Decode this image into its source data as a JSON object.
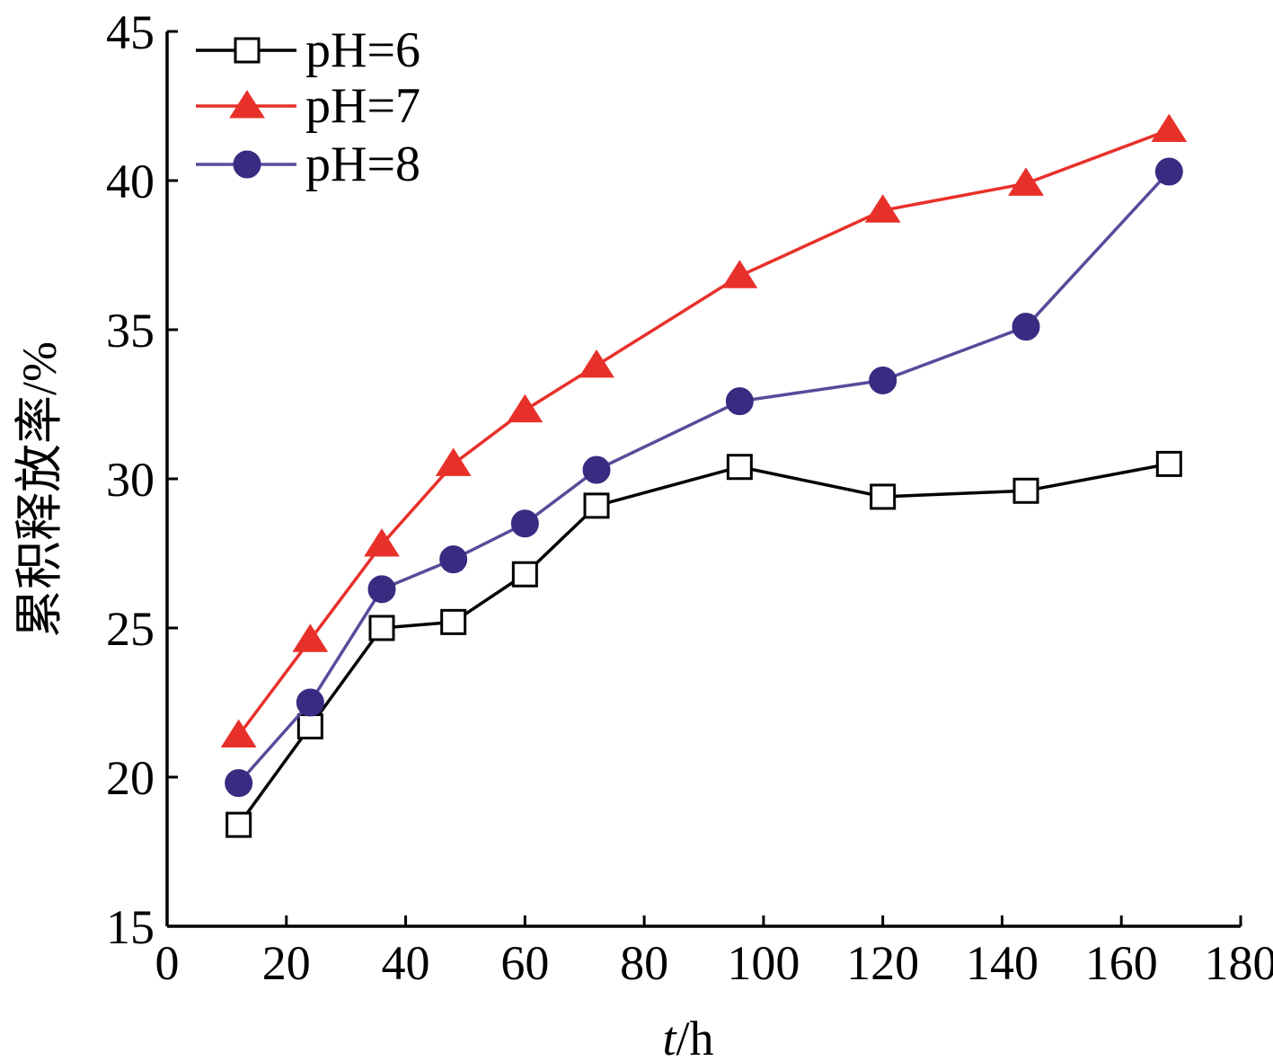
{
  "chart_data": {
    "type": "line",
    "xlabel_italic": "t",
    "xlabel_rest": "/h",
    "ylabel": "累积释放率/%",
    "xlim": [
      0,
      180
    ],
    "ylim": [
      15,
      45
    ],
    "xticks": [
      0,
      20,
      40,
      60,
      80,
      100,
      120,
      140,
      160,
      180
    ],
    "yticks": [
      15,
      20,
      25,
      30,
      35,
      40,
      45
    ],
    "x": [
      12,
      24,
      36,
      48,
      60,
      72,
      96,
      120,
      144,
      168
    ],
    "legend_position": "top-left",
    "grid": false,
    "series": [
      {
        "name": "pH=6",
        "color": "#000000",
        "marker": "open-square",
        "values": [
          18.4,
          21.7,
          25.0,
          25.2,
          26.8,
          29.1,
          30.4,
          29.4,
          29.6,
          30.5
        ]
      },
      {
        "name": "pH=7",
        "color": "#e8302a",
        "marker": "filled-triangle",
        "values": [
          21.4,
          24.6,
          27.8,
          30.5,
          32.3,
          33.8,
          36.8,
          39.0,
          39.9,
          41.7
        ]
      },
      {
        "name": "pH=8",
        "color": "#3a2a82",
        "line_color": "#5a4a9a",
        "marker": "filled-circle",
        "values": [
          19.8,
          22.5,
          26.3,
          27.3,
          28.5,
          30.3,
          32.6,
          33.3,
          35.1,
          40.3
        ]
      }
    ]
  }
}
